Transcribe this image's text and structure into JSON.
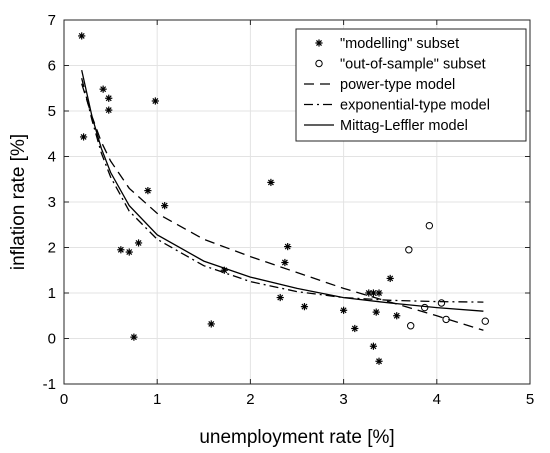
{
  "chart_data": {
    "type": "scatter",
    "xlabel": "unemployment rate [%]",
    "ylabel": "inflation rate [%]",
    "xlim": [
      0,
      5
    ],
    "ylim": [
      -1,
      7
    ],
    "x_ticks": [
      0,
      1,
      2,
      3,
      4,
      5
    ],
    "y_ticks": [
      -1,
      0,
      1,
      2,
      3,
      4,
      5,
      6,
      7
    ],
    "grid": true,
    "legend_position": "top-right",
    "series": [
      {
        "name": "\"modelling\" subset",
        "kind": "points",
        "marker": "asterisk",
        "points": [
          [
            0.19,
            6.65
          ],
          [
            0.21,
            4.43
          ],
          [
            0.42,
            5.48
          ],
          [
            0.48,
            5.28
          ],
          [
            0.48,
            5.02
          ],
          [
            0.61,
            1.95
          ],
          [
            0.7,
            1.9
          ],
          [
            0.75,
            0.03
          ],
          [
            0.8,
            2.1
          ],
          [
            0.9,
            3.25
          ],
          [
            0.98,
            5.22
          ],
          [
            1.08,
            2.92
          ],
          [
            1.58,
            0.32
          ],
          [
            1.72,
            1.5
          ],
          [
            2.22,
            3.43
          ],
          [
            2.32,
            0.9
          ],
          [
            2.37,
            1.67
          ],
          [
            2.4,
            2.02
          ],
          [
            2.58,
            0.7
          ],
          [
            3.0,
            0.62
          ],
          [
            3.12,
            0.22
          ],
          [
            3.27,
            1.0
          ],
          [
            3.32,
            1.0
          ],
          [
            3.38,
            1.0
          ],
          [
            3.32,
            -0.17
          ],
          [
            3.38,
            -0.5
          ],
          [
            3.35,
            0.58
          ],
          [
            3.5,
            1.32
          ],
          [
            3.57,
            0.5
          ]
        ]
      },
      {
        "name": "\"out-of-sample\" subset",
        "kind": "points",
        "marker": "circle",
        "points": [
          [
            3.7,
            1.95
          ],
          [
            3.72,
            0.28
          ],
          [
            3.87,
            0.68
          ],
          [
            3.92,
            2.48
          ],
          [
            4.05,
            0.78
          ],
          [
            4.1,
            0.42
          ],
          [
            4.52,
            0.38
          ]
        ]
      },
      {
        "name": "power-type model",
        "kind": "line",
        "dash": "dashed",
        "points": [
          [
            0.19,
            5.6
          ],
          [
            0.3,
            4.88
          ],
          [
            0.4,
            4.32
          ],
          [
            0.5,
            3.9
          ],
          [
            0.7,
            3.3
          ],
          [
            1.0,
            2.75
          ],
          [
            1.5,
            2.18
          ],
          [
            2.0,
            1.8
          ],
          [
            2.5,
            1.45
          ],
          [
            3.0,
            1.1
          ],
          [
            3.5,
            0.8
          ],
          [
            4.0,
            0.5
          ],
          [
            4.5,
            0.18
          ]
        ]
      },
      {
        "name": "exponential-type model",
        "kind": "line",
        "dash": "dash-dot",
        "points": [
          [
            0.19,
            5.72
          ],
          [
            0.3,
            4.8
          ],
          [
            0.4,
            4.08
          ],
          [
            0.5,
            3.55
          ],
          [
            0.7,
            2.8
          ],
          [
            1.0,
            2.18
          ],
          [
            1.5,
            1.6
          ],
          [
            2.0,
            1.25
          ],
          [
            2.5,
            1.03
          ],
          [
            3.0,
            0.9
          ],
          [
            3.5,
            0.84
          ],
          [
            4.0,
            0.81
          ],
          [
            4.5,
            0.8
          ]
        ]
      },
      {
        "name": "Mittag-Leffler model",
        "kind": "line",
        "dash": "solid",
        "points": [
          [
            0.19,
            5.9
          ],
          [
            0.3,
            4.88
          ],
          [
            0.4,
            4.18
          ],
          [
            0.5,
            3.65
          ],
          [
            0.7,
            2.92
          ],
          [
            1.0,
            2.28
          ],
          [
            1.5,
            1.7
          ],
          [
            2.0,
            1.35
          ],
          [
            2.5,
            1.1
          ],
          [
            3.0,
            0.9
          ],
          [
            3.5,
            0.78
          ],
          [
            4.0,
            0.68
          ],
          [
            4.5,
            0.6
          ]
        ]
      }
    ]
  }
}
